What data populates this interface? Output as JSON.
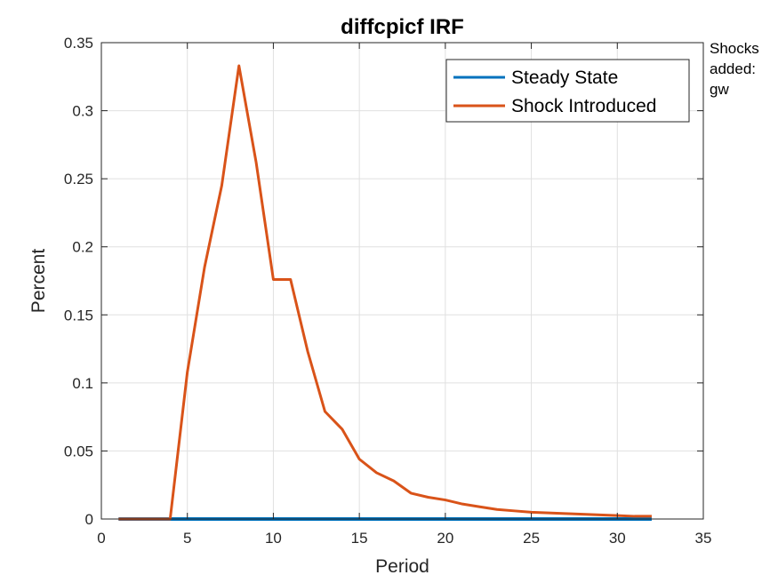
{
  "chart_data": {
    "type": "line",
    "title": "diffcpicf IRF",
    "xlabel": "Period",
    "ylabel": "Percent",
    "xlim": [
      0,
      35
    ],
    "ylim": [
      0,
      0.35
    ],
    "xticks": [
      0,
      5,
      10,
      15,
      20,
      25,
      30,
      35
    ],
    "yticks": [
      0,
      0.05,
      0.1,
      0.15,
      0.2,
      0.25,
      0.3,
      0.35
    ],
    "xtick_labels": [
      "0",
      "5",
      "10",
      "15",
      "20",
      "25",
      "30",
      "35"
    ],
    "ytick_labels": [
      "0",
      "0.05",
      "0.1",
      "0.15",
      "0.2",
      "0.25",
      "0.3",
      "0.35"
    ],
    "grid": true,
    "legend_position": "top-right",
    "x": [
      1,
      2,
      3,
      4,
      5,
      6,
      7,
      8,
      9,
      10,
      11,
      12,
      13,
      14,
      15,
      16,
      17,
      18,
      19,
      20,
      21,
      22,
      23,
      24,
      25,
      26,
      27,
      28,
      29,
      30,
      31,
      32
    ],
    "series": [
      {
        "name": "Steady State",
        "color": "#0072BD",
        "values": [
          0,
          0,
          0,
          0,
          0,
          0,
          0,
          0,
          0,
          0,
          0,
          0,
          0,
          0,
          0,
          0,
          0,
          0,
          0,
          0,
          0,
          0,
          0,
          0,
          0,
          0,
          0,
          0,
          0,
          0,
          0,
          0
        ]
      },
      {
        "name": "Shock Introduced",
        "color": "#D95319",
        "values": [
          0,
          0,
          0,
          0,
          0.108,
          0.185,
          0.245,
          0.333,
          0.262,
          0.176,
          0.176,
          0.123,
          0.079,
          0.066,
          0.044,
          0.034,
          0.028,
          0.019,
          0.016,
          0.014,
          0.011,
          0.009,
          0.007,
          0.006,
          0.005,
          0.0045,
          0.004,
          0.0035,
          0.003,
          0.0025,
          0.002,
          0.002
        ]
      }
    ]
  },
  "side_note": {
    "lines": [
      "Shocks",
      "added:",
      "gw"
    ]
  }
}
